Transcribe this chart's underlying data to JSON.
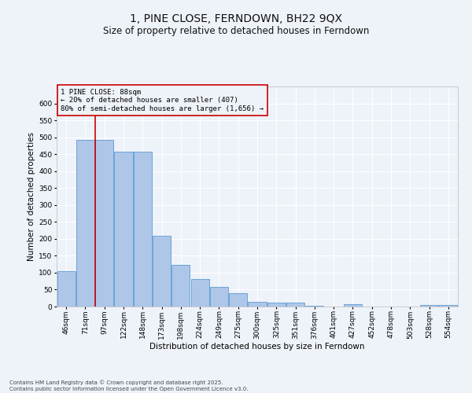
{
  "title": "1, PINE CLOSE, FERNDOWN, BH22 9QX",
  "subtitle": "Size of property relative to detached houses in Ferndown",
  "xlabel": "Distribution of detached houses by size in Ferndown",
  "ylabel": "Number of detached properties",
  "footnote": "Contains HM Land Registry data © Crown copyright and database right 2025.\nContains public sector information licensed under the Open Government Licence v3.0.",
  "categories": [
    "46sqm",
    "71sqm",
    "97sqm",
    "122sqm",
    "148sqm",
    "173sqm",
    "198sqm",
    "224sqm",
    "249sqm",
    "275sqm",
    "300sqm",
    "325sqm",
    "351sqm",
    "376sqm",
    "401sqm",
    "427sqm",
    "452sqm",
    "478sqm",
    "503sqm",
    "528sqm",
    "554sqm"
  ],
  "values": [
    105,
    492,
    492,
    458,
    458,
    208,
    122,
    82,
    58,
    40,
    15,
    12,
    12,
    2,
    0,
    6,
    0,
    0,
    0,
    5,
    5
  ],
  "bar_color": "#aec6e8",
  "bar_edge_color": "#5b9bd5",
  "ylim": [
    0,
    650
  ],
  "yticks": [
    0,
    50,
    100,
    150,
    200,
    250,
    300,
    350,
    400,
    450,
    500,
    550,
    600
  ],
  "vline_x": 1.5,
  "property_label": "1 PINE CLOSE: 88sqm",
  "annotation_line1": "← 20% of detached houses are smaller (407)",
  "annotation_line2": "80% of semi-detached houses are larger (1,656) →",
  "vline_color": "#cc0000",
  "annotation_box_color": "#cc0000",
  "bg_color": "#eef2f9",
  "grid_color": "#ffffff",
  "title_fontsize": 10,
  "subtitle_fontsize": 8.5,
  "axis_label_fontsize": 7.5,
  "tick_fontsize": 6.5,
  "footnote_fontsize": 5,
  "annot_fontsize": 6.5
}
